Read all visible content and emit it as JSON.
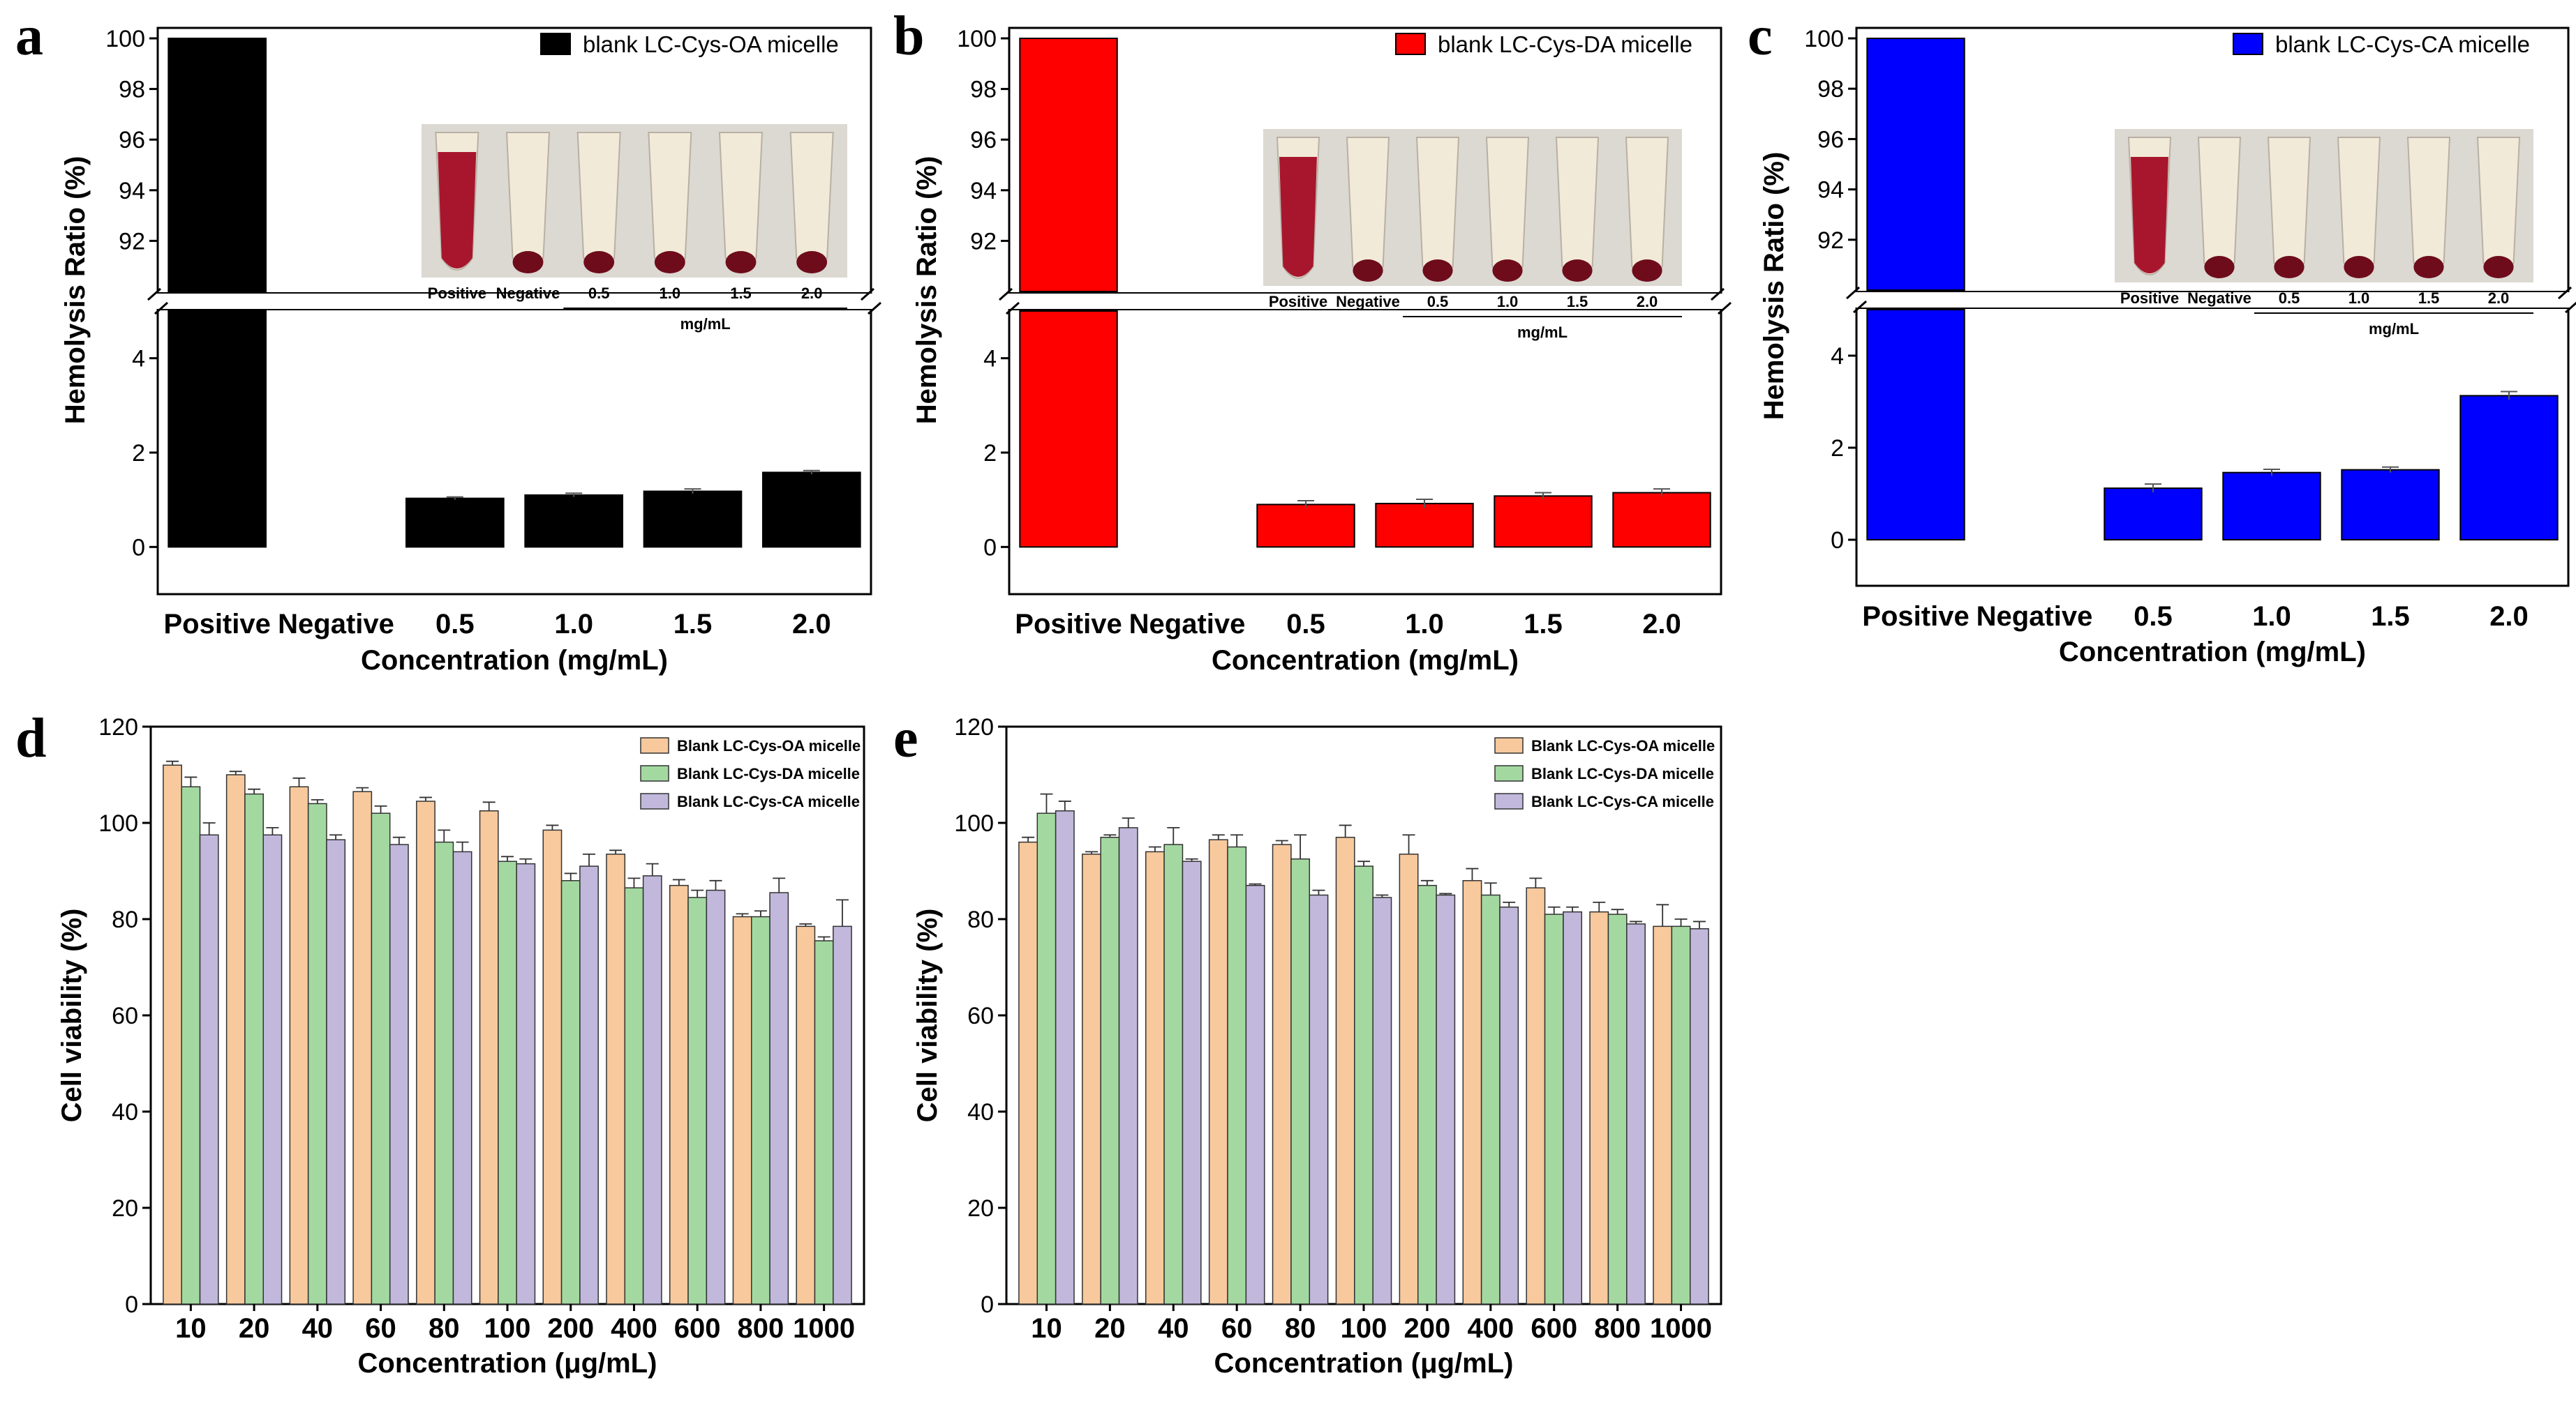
{
  "panels": {
    "a": "a",
    "b": "b",
    "c": "c",
    "d": "d",
    "e": "e"
  },
  "colors": {
    "a": "#000000",
    "b": "#ff0000",
    "c": "#0000ff",
    "oa": "#f7c99c",
    "da": "#a3d9a1",
    "ca": "#c1b8dc"
  },
  "inset": {
    "labels": [
      "Positive",
      "Negative",
      "0.5",
      "1.0",
      "1.5",
      "2.0"
    ],
    "unit": "mg/mL"
  },
  "chart_data": [
    {
      "id": "a",
      "type": "bar",
      "title": "",
      "xlabel": "Concentration (mg/mL)",
      "ylabel": "Hemolysis Ratio (%)",
      "categories": [
        "Positive",
        "Negative",
        "0.5",
        "1.0",
        "1.5",
        "2.0"
      ],
      "values": [
        100,
        0,
        1.03,
        1.1,
        1.18,
        1.58
      ],
      "errors": [
        0,
        0,
        0.03,
        0.04,
        0.05,
        0.04
      ],
      "legend": "blank LC-Cys-OA micelle",
      "ylim_lower": [
        -1,
        5
      ],
      "ylim_upper": [
        90,
        100
      ],
      "yticks_lower": [
        "0",
        "2",
        "4"
      ],
      "yticks_upper": [
        "92",
        "94",
        "96",
        "98",
        "100"
      ]
    },
    {
      "id": "b",
      "type": "bar",
      "title": "",
      "xlabel": "Concentration (mg/mL)",
      "ylabel": "Hemolysis Ratio (%)",
      "categories": [
        "Positive",
        "Negative",
        "0.5",
        "1.0",
        "1.5",
        "2.0"
      ],
      "values": [
        100,
        0,
        0.9,
        0.92,
        1.08,
        1.15
      ],
      "errors": [
        0,
        0,
        0.08,
        0.09,
        0.07,
        0.08
      ],
      "legend": "blank LC-Cys-DA micelle",
      "ylim_lower": [
        -1,
        5
      ],
      "ylim_upper": [
        90,
        100
      ],
      "yticks_lower": [
        "0",
        "2",
        "4"
      ],
      "yticks_upper": [
        "92",
        "94",
        "96",
        "98",
        "100"
      ]
    },
    {
      "id": "c",
      "type": "bar",
      "title": "",
      "xlabel": "Concentration (mg/mL)",
      "ylabel": "Hemolysis Ratio (%)",
      "categories": [
        "Positive",
        "Negative",
        "0.5",
        "1.0",
        "1.5",
        "2.0"
      ],
      "values": [
        100,
        0,
        1.12,
        1.46,
        1.52,
        3.13
      ],
      "errors": [
        0,
        0,
        0.09,
        0.07,
        0.06,
        0.09
      ],
      "legend": "blank LC-Cys-CA micelle",
      "ylim_lower": [
        -1,
        5
      ],
      "ylim_upper": [
        90,
        100
      ],
      "yticks_lower": [
        "0",
        "2",
        "4"
      ],
      "yticks_upper": [
        "92",
        "94",
        "96",
        "98",
        "100"
      ]
    },
    {
      "id": "d",
      "type": "bar",
      "title": "",
      "xlabel": "Concentration (μg/mL)",
      "ylabel": "Cell viability (%)",
      "categories": [
        "10",
        "20",
        "40",
        "60",
        "80",
        "100",
        "200",
        "400",
        "600",
        "800",
        "1000"
      ],
      "ylim": [
        0,
        120
      ],
      "yticks": [
        "0",
        "20",
        "40",
        "60",
        "80",
        "100",
        "120"
      ],
      "series": [
        {
          "name": "Blank LC-Cys-OA micelle",
          "values": [
            112,
            110,
            107.5,
            106.5,
            104.5,
            102.5,
            98.5,
            93.5,
            87,
            80.5,
            78.5
          ],
          "errors": [
            0.8,
            0.7,
            1.8,
            0.8,
            0.8,
            1.8,
            1.0,
            0.8,
            1.2,
            0.6,
            0.5
          ]
        },
        {
          "name": "Blank LC-Cys-DA micelle",
          "values": [
            107.5,
            106,
            104,
            102,
            96,
            92,
            88,
            86.5,
            84.5,
            80.5,
            75.5
          ],
          "errors": [
            2.0,
            1.0,
            0.8,
            1.5,
            2.5,
            1.0,
            1.5,
            2.0,
            1.5,
            1.2,
            0.8
          ]
        },
        {
          "name": "Blank LC-Cys-CA micelle",
          "values": [
            97.5,
            97.5,
            96.5,
            95.5,
            94,
            91.5,
            91,
            89,
            86,
            85.5,
            78.5
          ],
          "errors": [
            2.5,
            1.5,
            1.0,
            1.5,
            2.0,
            1.0,
            2.5,
            2.5,
            2.0,
            3.0,
            5.5
          ]
        }
      ]
    },
    {
      "id": "e",
      "type": "bar",
      "title": "",
      "xlabel": "Concentration (μg/mL)",
      "ylabel": "Cell viability (%)",
      "categories": [
        "10",
        "20",
        "40",
        "60",
        "80",
        "100",
        "200",
        "400",
        "600",
        "800",
        "1000"
      ],
      "ylim": [
        0,
        120
      ],
      "yticks": [
        "0",
        "20",
        "40",
        "60",
        "80",
        "100",
        "120"
      ],
      "series": [
        {
          "name": "Blank LC-Cys-OA micelle",
          "values": [
            96,
            93.5,
            94,
            96.5,
            95.5,
            97,
            93.5,
            88,
            86.5,
            81.5,
            78.5
          ],
          "errors": [
            1.0,
            0.5,
            1.0,
            1.0,
            0.8,
            2.5,
            4.0,
            2.5,
            2.0,
            2.0,
            4.5
          ]
        },
        {
          "name": "Blank LC-Cys-DA micelle",
          "values": [
            102,
            97,
            95.5,
            95,
            92.5,
            91,
            87,
            85,
            81,
            81,
            78.5
          ],
          "errors": [
            4.0,
            0.5,
            3.5,
            2.5,
            5.0,
            1.0,
            1.0,
            2.5,
            1.5,
            1.0,
            1.5
          ]
        },
        {
          "name": "Blank LC-Cys-CA micelle",
          "values": [
            102.5,
            99,
            92,
            87,
            85,
            84.5,
            85,
            82.5,
            81.5,
            79,
            78
          ],
          "errors": [
            2.0,
            2.0,
            0.5,
            0.3,
            1.0,
            0.5,
            0.3,
            1.0,
            1.0,
            0.5,
            1.5
          ]
        }
      ]
    }
  ]
}
